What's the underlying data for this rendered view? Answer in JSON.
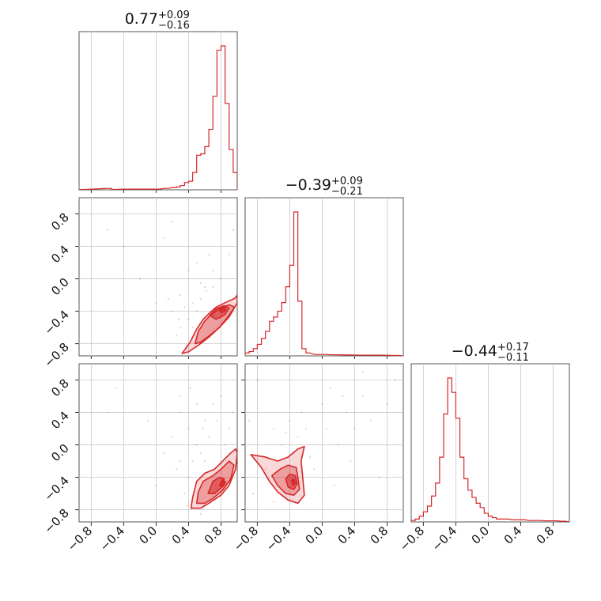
{
  "chart_data": {
    "type": "corner",
    "color": "#d62728",
    "params": [
      "p0",
      "p1",
      "p2"
    ],
    "axis_range": [
      -0.95,
      1.0
    ],
    "tick_values": [
      -0.8,
      -0.4,
      0.0,
      0.4,
      0.8
    ],
    "tick_labels": [
      "−0.8",
      "−0.4",
      "0.0",
      "0.4",
      "0.8"
    ],
    "grid": true,
    "titles": [
      {
        "value": "0.77",
        "plus": "+0.09",
        "minus": "−0.16"
      },
      {
        "value": "−0.39",
        "plus": "+0.09",
        "minus": "−0.21"
      },
      {
        "value": "−0.44",
        "plus": "+0.17",
        "minus": "−0.11"
      }
    ],
    "histograms": [
      {
        "param": 0,
        "bins": [
          [
            -0.95,
            0.2
          ],
          [
            -0.6,
            1
          ],
          [
            -0.55,
            0.3
          ],
          [
            -0.4,
            0.5
          ],
          [
            -0.2,
            0.5
          ],
          [
            0.0,
            0.5
          ],
          [
            0.1,
            1
          ],
          [
            0.2,
            1.5
          ],
          [
            0.25,
            2
          ],
          [
            0.3,
            3
          ],
          [
            0.35,
            5
          ],
          [
            0.4,
            6
          ],
          [
            0.45,
            12
          ],
          [
            0.5,
            24
          ],
          [
            0.55,
            25
          ],
          [
            0.6,
            30
          ],
          [
            0.65,
            42
          ],
          [
            0.7,
            65
          ],
          [
            0.75,
            97
          ],
          [
            0.8,
            100
          ],
          [
            0.85,
            60
          ],
          [
            0.9,
            28
          ],
          [
            0.95,
            12
          ]
        ]
      },
      {
        "param": 1,
        "bins": [
          [
            -0.95,
            2
          ],
          [
            -0.9,
            3
          ],
          [
            -0.85,
            5
          ],
          [
            -0.8,
            8
          ],
          [
            -0.75,
            12
          ],
          [
            -0.7,
            17
          ],
          [
            -0.65,
            24
          ],
          [
            -0.6,
            27
          ],
          [
            -0.55,
            31
          ],
          [
            -0.5,
            37
          ],
          [
            -0.45,
            48
          ],
          [
            -0.4,
            63
          ],
          [
            -0.35,
            100
          ],
          [
            -0.3,
            38
          ],
          [
            -0.25,
            5
          ],
          [
            -0.2,
            2
          ],
          [
            -0.1,
            1
          ],
          [
            0.0,
            1
          ],
          [
            0.1,
            0.8
          ],
          [
            0.3,
            0.6
          ],
          [
            0.5,
            0.5
          ],
          [
            0.7,
            0.5
          ],
          [
            0.9,
            0.3
          ]
        ]
      },
      {
        "param": 2,
        "bins": [
          [
            -0.95,
            1
          ],
          [
            -0.9,
            2
          ],
          [
            -0.85,
            4
          ],
          [
            -0.8,
            7
          ],
          [
            -0.75,
            11
          ],
          [
            -0.7,
            18
          ],
          [
            -0.65,
            27
          ],
          [
            -0.6,
            45
          ],
          [
            -0.55,
            75
          ],
          [
            -0.5,
            100
          ],
          [
            -0.45,
            90
          ],
          [
            -0.4,
            72
          ],
          [
            -0.35,
            45
          ],
          [
            -0.3,
            30
          ],
          [
            -0.25,
            22
          ],
          [
            -0.2,
            17
          ],
          [
            -0.15,
            13
          ],
          [
            -0.1,
            10
          ],
          [
            -0.05,
            6
          ],
          [
            0.0,
            4
          ],
          [
            0.05,
            3
          ],
          [
            0.1,
            2
          ],
          [
            0.2,
            2
          ],
          [
            0.3,
            1.5
          ],
          [
            0.4,
            1.5
          ],
          [
            0.5,
            1
          ],
          [
            0.6,
            1
          ],
          [
            0.7,
            0.8
          ],
          [
            0.8,
            0.8
          ],
          [
            0.9,
            0.5
          ]
        ]
      }
    ],
    "pairs": [
      {
        "x_param": 0,
        "y_param": 1,
        "contours": [
          [
            [
              0.32,
              -0.92
            ],
            [
              0.42,
              -0.78
            ],
            [
              0.5,
              -0.62
            ],
            [
              0.58,
              -0.5
            ],
            [
              0.66,
              -0.42
            ],
            [
              0.74,
              -0.35
            ],
            [
              0.84,
              -0.3
            ],
            [
              0.97,
              -0.24
            ],
            [
              1.0,
              -0.2
            ],
            [
              1.0,
              -0.3
            ],
            [
              0.9,
              -0.45
            ],
            [
              0.78,
              -0.6
            ],
            [
              0.65,
              -0.72
            ],
            [
              0.52,
              -0.82
            ],
            [
              0.4,
              -0.9
            ]
          ],
          [
            [
              0.48,
              -0.8
            ],
            [
              0.52,
              -0.65
            ],
            [
              0.6,
              -0.52
            ],
            [
              0.68,
              -0.44
            ],
            [
              0.78,
              -0.37
            ],
            [
              0.9,
              -0.32
            ],
            [
              0.97,
              -0.35
            ],
            [
              0.9,
              -0.47
            ],
            [
              0.78,
              -0.6
            ],
            [
              0.66,
              -0.7
            ],
            [
              0.55,
              -0.78
            ]
          ],
          [
            [
              0.66,
              -0.45
            ],
            [
              0.74,
              -0.37
            ],
            [
              0.84,
              -0.33
            ],
            [
              0.9,
              -0.36
            ],
            [
              0.84,
              -0.45
            ],
            [
              0.74,
              -0.5
            ]
          ],
          [
            [
              0.78,
              -0.38
            ],
            [
              0.84,
              -0.34
            ],
            [
              0.86,
              -0.38
            ],
            [
              0.81,
              -0.42
            ]
          ]
        ],
        "points": [
          [
            -0.6,
            0.6
          ],
          [
            -0.4,
            0.4
          ],
          [
            0.1,
            0.5
          ],
          [
            0.4,
            0.1
          ],
          [
            0.5,
            0.2
          ],
          [
            0.3,
            -0.2
          ],
          [
            0.2,
            -0.4
          ],
          [
            0.6,
            -0.1
          ],
          [
            0.5,
            -0.4
          ],
          [
            0.4,
            -0.5
          ],
          [
            0.45,
            -0.3
          ],
          [
            0.35,
            -0.35
          ],
          [
            0.55,
            -0.25
          ],
          [
            0.62,
            -0.15
          ],
          [
            0.7,
            -0.1
          ],
          [
            0.9,
            0.3
          ],
          [
            0.8,
            0.0
          ],
          [
            0.3,
            -0.6
          ],
          [
            0.25,
            -0.7
          ],
          [
            0.45,
            -0.6
          ],
          [
            0.2,
            0.7
          ],
          [
            0.0,
            -0.3
          ],
          [
            -0.2,
            0.0
          ],
          [
            0.65,
            0.3
          ],
          [
            0.95,
            0.6
          ],
          [
            0.38,
            -0.82
          ],
          [
            0.28,
            -0.5
          ],
          [
            0.55,
            -0.05
          ],
          [
            0.7,
            0.1
          ],
          [
            0.15,
            -0.25
          ]
        ]
      },
      {
        "x_param": 0,
        "y_param": 2,
        "contours": [
          [
            [
              0.43,
              -0.78
            ],
            [
              0.45,
              -0.65
            ],
            [
              0.5,
              -0.45
            ],
            [
              0.6,
              -0.35
            ],
            [
              0.72,
              -0.3
            ],
            [
              0.82,
              -0.2
            ],
            [
              0.92,
              -0.1
            ],
            [
              0.98,
              -0.05
            ],
            [
              1.0,
              -0.1
            ],
            [
              0.98,
              -0.3
            ],
            [
              0.9,
              -0.5
            ],
            [
              0.8,
              -0.62
            ],
            [
              0.65,
              -0.72
            ],
            [
              0.55,
              -0.78
            ]
          ],
          [
            [
              0.5,
              -0.72
            ],
            [
              0.52,
              -0.58
            ],
            [
              0.58,
              -0.45
            ],
            [
              0.7,
              -0.38
            ],
            [
              0.8,
              -0.3
            ],
            [
              0.9,
              -0.2
            ],
            [
              0.96,
              -0.25
            ],
            [
              0.92,
              -0.42
            ],
            [
              0.82,
              -0.56
            ],
            [
              0.7,
              -0.66
            ],
            [
              0.6,
              -0.72
            ]
          ],
          [
            [
              0.64,
              -0.6
            ],
            [
              0.7,
              -0.45
            ],
            [
              0.78,
              -0.4
            ],
            [
              0.84,
              -0.42
            ],
            [
              0.8,
              -0.53
            ],
            [
              0.72,
              -0.6
            ]
          ],
          [
            [
              0.78,
              -0.5
            ],
            [
              0.82,
              -0.43
            ],
            [
              0.86,
              -0.46
            ],
            [
              0.82,
              -0.52
            ]
          ]
        ],
        "points": [
          [
            -0.6,
            0.4
          ],
          [
            -0.5,
            0.7
          ],
          [
            -0.1,
            0.3
          ],
          [
            0.3,
            0.6
          ],
          [
            0.4,
            0.2
          ],
          [
            0.5,
            0.0
          ],
          [
            0.3,
            -0.2
          ],
          [
            0.6,
            0.3
          ],
          [
            0.7,
            0.5
          ],
          [
            0.8,
            0.6
          ],
          [
            0.9,
            0.2
          ],
          [
            0.4,
            -0.4
          ],
          [
            0.45,
            -0.2
          ],
          [
            0.55,
            -0.1
          ],
          [
            0.65,
            0.1
          ],
          [
            0.35,
            -0.6
          ],
          [
            0.5,
            0.5
          ],
          [
            0.6,
            -0.2
          ],
          [
            0.25,
            -0.3
          ],
          [
            0.2,
            0.1
          ],
          [
            0.95,
            0.4
          ],
          [
            0.85,
            0.0
          ],
          [
            0.38,
            -0.75
          ],
          [
            0.55,
            -0.85
          ],
          [
            0.42,
            0.7
          ],
          [
            0.0,
            -0.5
          ],
          [
            0.58,
            0.2
          ],
          [
            0.75,
            0.3
          ],
          [
            0.3,
            0.4
          ],
          [
            0.1,
            -0.1
          ]
        ]
      },
      {
        "x_param": 1,
        "y_param": 2,
        "contours": [
          [
            [
              -0.88,
              -0.12
            ],
            [
              -0.75,
              -0.28
            ],
            [
              -0.65,
              -0.45
            ],
            [
              -0.55,
              -0.58
            ],
            [
              -0.42,
              -0.68
            ],
            [
              -0.3,
              -0.72
            ],
            [
              -0.22,
              -0.62
            ],
            [
              -0.24,
              -0.4
            ],
            [
              -0.26,
              -0.2
            ],
            [
              -0.22,
              -0.02
            ],
            [
              -0.3,
              -0.05
            ],
            [
              -0.42,
              -0.15
            ],
            [
              -0.55,
              -0.2
            ],
            [
              -0.7,
              -0.15
            ]
          ],
          [
            [
              -0.62,
              -0.38
            ],
            [
              -0.55,
              -0.5
            ],
            [
              -0.45,
              -0.6
            ],
            [
              -0.35,
              -0.62
            ],
            [
              -0.28,
              -0.55
            ],
            [
              -0.3,
              -0.4
            ],
            [
              -0.32,
              -0.28
            ],
            [
              -0.42,
              -0.25
            ],
            [
              -0.52,
              -0.3
            ]
          ],
          [
            [
              -0.45,
              -0.42
            ],
            [
              -0.42,
              -0.52
            ],
            [
              -0.35,
              -0.55
            ],
            [
              -0.31,
              -0.48
            ],
            [
              -0.33,
              -0.38
            ],
            [
              -0.4,
              -0.36
            ]
          ],
          [
            [
              -0.38,
              -0.44
            ],
            [
              -0.36,
              -0.5
            ],
            [
              -0.33,
              -0.47
            ],
            [
              -0.35,
              -0.42
            ]
          ]
        ],
        "points": [
          [
            -0.9,
            0.3
          ],
          [
            -0.8,
            0.8
          ],
          [
            -0.6,
            0.2
          ],
          [
            -0.4,
            0.3
          ],
          [
            -0.3,
            0.1
          ],
          [
            -0.1,
            -0.3
          ],
          [
            0.0,
            0.5
          ],
          [
            0.3,
            0.4
          ],
          [
            0.5,
            0.6
          ],
          [
            0.7,
            -0.4
          ],
          [
            0.6,
            0.3
          ],
          [
            -0.2,
            0.2
          ],
          [
            -0.5,
            0.0
          ],
          [
            -0.7,
            -0.3
          ],
          [
            0.1,
            0.7
          ],
          [
            0.4,
            0.2
          ],
          [
            0.2,
            0.0
          ],
          [
            -0.45,
            0.15
          ],
          [
            -0.15,
            -0.15
          ],
          [
            0.8,
            0.5
          ],
          [
            0.9,
            0.8
          ],
          [
            -0.85,
            -0.6
          ],
          [
            0.15,
            -0.5
          ],
          [
            0.35,
            -0.2
          ],
          [
            -0.25,
            0.4
          ],
          [
            0.5,
            0.9
          ],
          [
            -0.6,
            -0.7
          ],
          [
            0.05,
            0.2
          ],
          [
            -0.35,
            -0.1
          ],
          [
            0.25,
            0.6
          ]
        ]
      }
    ]
  }
}
